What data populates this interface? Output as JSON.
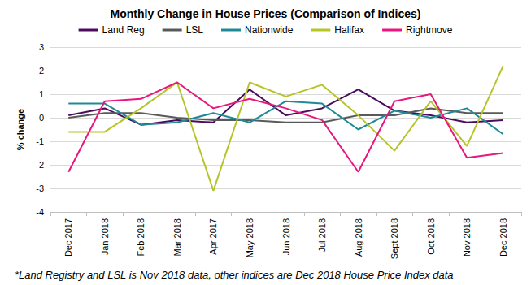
{
  "chart_data": {
    "type": "line",
    "title": "Monthly Change in House Prices (Comparison of Indices)",
    "y_label": "% change",
    "annotations": [
      "*Land Registry and LSL is Nov 2018 data, other indices are Dec 2018 House Price Index data"
    ],
    "categories": [
      "Dec 2017",
      "Jan 2018",
      "Feb 2018",
      "Mar 2018",
      "Apr 2017",
      "May 2018",
      "Jun 2018",
      "Jul 2018",
      "Aug 2018",
      "Sept 2018",
      "Oct 2018",
      "Nov 2018",
      "Dec 2018"
    ],
    "series": [
      {
        "name": "Land Reg",
        "color": "#4b0a5c",
        "values": [
          0.1,
          0.4,
          -0.3,
          -0.1,
          -0.2,
          1.2,
          0.1,
          0.4,
          1.2,
          0.3,
          0.1,
          -0.2,
          -0.1
        ]
      },
      {
        "name": "LSL",
        "color": "#595959",
        "values": [
          0.0,
          0.2,
          0.2,
          0.0,
          -0.1,
          -0.1,
          -0.2,
          -0.2,
          0.1,
          0.1,
          0.4,
          0.2,
          0.2
        ]
      },
      {
        "name": "Nationwide",
        "color": "#1f8a96",
        "values": [
          0.6,
          0.6,
          -0.3,
          -0.2,
          0.2,
          -0.2,
          0.7,
          0.6,
          -0.5,
          0.3,
          0.0,
          0.4,
          -0.7
        ]
      },
      {
        "name": "Halifax",
        "color": "#b5c427",
        "values": [
          -0.6,
          -0.6,
          0.4,
          1.5,
          -3.1,
          1.5,
          0.9,
          1.4,
          0.1,
          -1.4,
          0.7,
          -1.2,
          2.2
        ]
      },
      {
        "name": "Rightmove",
        "color": "#e8177d",
        "values": [
          -2.3,
          0.7,
          0.8,
          1.5,
          0.4,
          0.8,
          0.4,
          -0.1,
          -2.3,
          0.7,
          1.0,
          -1.7,
          -1.5
        ]
      }
    ],
    "ylim": [
      -4,
      3
    ],
    "yticks": [
      -4,
      -3,
      -2,
      -1,
      0,
      1,
      2,
      3
    ],
    "grid": true,
    "legend": "top",
    "marker": "none",
    "line_style": "solid"
  }
}
